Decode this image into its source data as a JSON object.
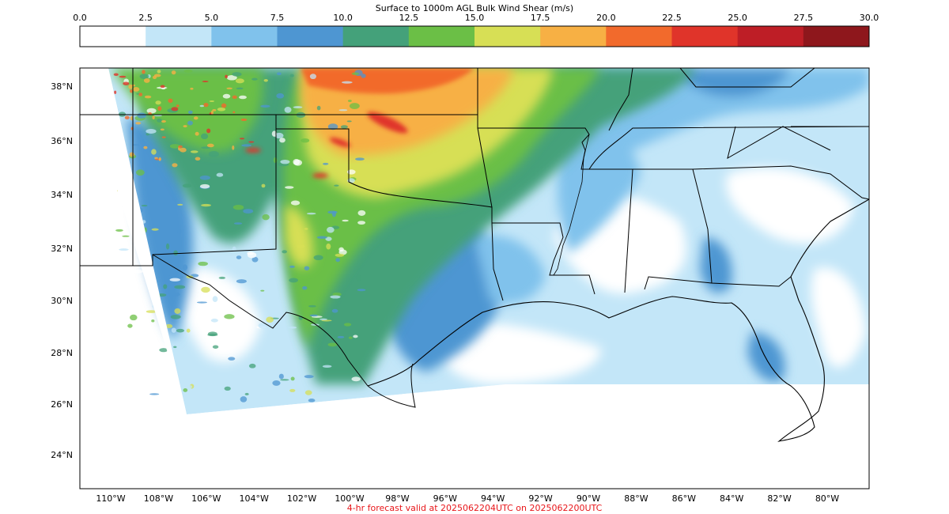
{
  "colorbar": {
    "title": "Surface to 1000m AGL Bulk Wind Shear (m/s)",
    "ticks": [
      "0.0",
      "2.5",
      "5.0",
      "7.5",
      "10.0",
      "12.5",
      "15.0",
      "17.5",
      "20.0",
      "22.5",
      "25.0",
      "27.5",
      "30.0"
    ],
    "colors": [
      "#ffffff",
      "#c3e6f8",
      "#80c2ec",
      "#4e96d2",
      "#44a17a",
      "#6bbf46",
      "#d7df55",
      "#f7b044",
      "#f26a2c",
      "#e0342a",
      "#be1e26",
      "#8e171c"
    ]
  },
  "map": {
    "lat_labels": [
      "38°N",
      "36°N",
      "34°N",
      "32°N",
      "30°N",
      "28°N",
      "26°N",
      "24°N"
    ],
    "lon_labels": [
      "110°W",
      "108°W",
      "106°W",
      "104°W",
      "102°W",
      "100°W",
      "98°W",
      "96°W",
      "94°W",
      "92°W",
      "90°W",
      "88°W",
      "86°W",
      "84°W",
      "82°W",
      "80°W"
    ]
  },
  "footer": "4-hr forecast valid at 2025062204UTC on 2025062200UTC"
}
